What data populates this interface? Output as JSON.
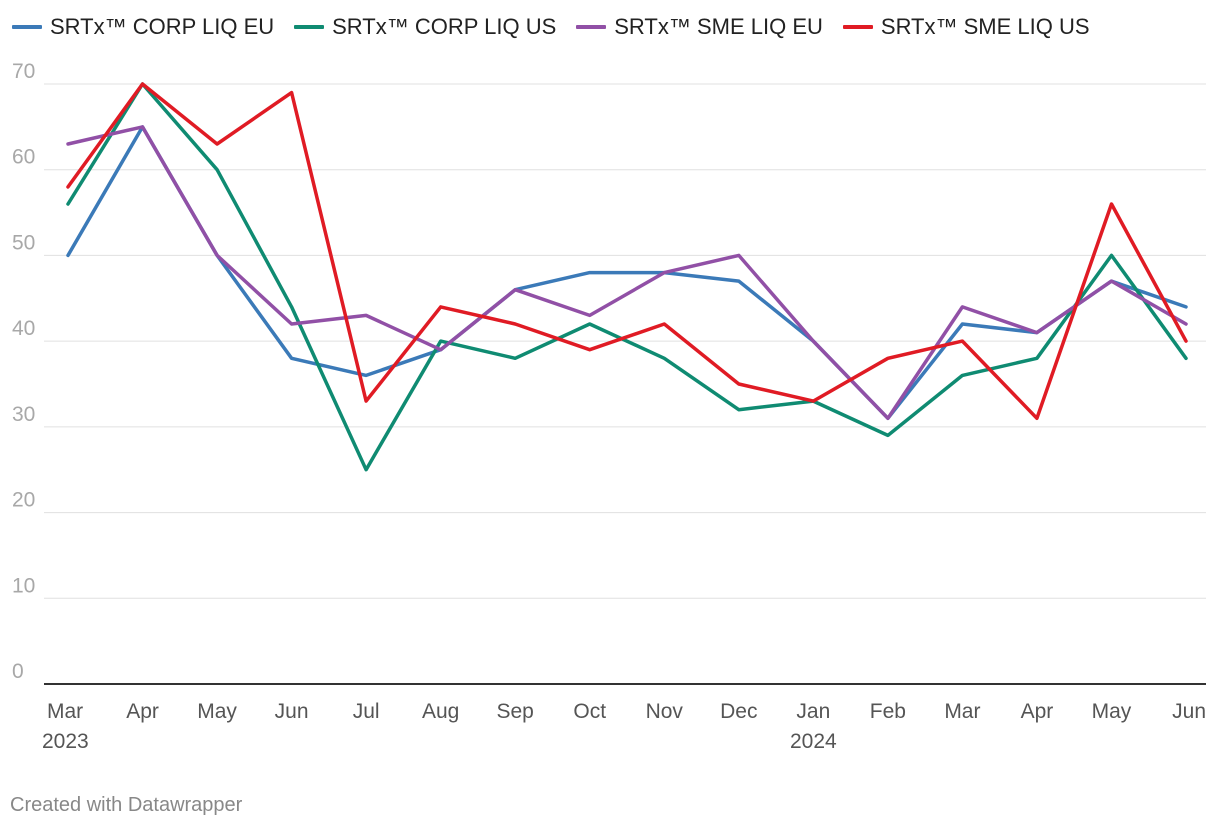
{
  "chart_data": {
    "type": "line",
    "categories": [
      "Mar",
      "Apr",
      "May",
      "Jun",
      "Jul",
      "Aug",
      "Sep",
      "Oct",
      "Nov",
      "Dec",
      "Jan",
      "Feb",
      "Mar",
      "Apr",
      "May",
      "Jun"
    ],
    "year_labels": [
      "2023",
      "",
      "",
      "",
      "",
      "",
      "",
      "",
      "",
      "",
      "2024",
      "",
      "",
      "",
      "",
      ""
    ],
    "ylim": [
      0,
      70
    ],
    "yticks": [
      0,
      10,
      20,
      30,
      40,
      50,
      60,
      70
    ],
    "grid": true,
    "legend_position": "top-left",
    "series": [
      {
        "name": "SRTx™ CORP LIQ EU",
        "color": "#3b7ab8",
        "values": [
          50,
          65,
          50,
          38,
          36,
          39,
          46,
          48,
          48,
          47,
          40,
          31,
          42,
          41,
          47,
          44
        ]
      },
      {
        "name": "SRTx™ CORP LIQ US",
        "color": "#0f8b72",
        "values": [
          56,
          70,
          60,
          44,
          25,
          40,
          38,
          42,
          38,
          32,
          33,
          29,
          36,
          38,
          50,
          38
        ]
      },
      {
        "name": "SRTx™ SME LIQ EU",
        "color": "#9150a6",
        "values": [
          63,
          65,
          50,
          42,
          43,
          39,
          46,
          43,
          48,
          50,
          40,
          31,
          44,
          41,
          47,
          42
        ]
      },
      {
        "name": "SRTx™ SME LIQ US",
        "color": "#e01b24",
        "values": [
          58,
          70,
          63,
          69,
          33,
          44,
          42,
          39,
          42,
          35,
          33,
          38,
          40,
          31,
          56,
          40
        ]
      }
    ]
  },
  "footer": {
    "credit": "Created with Datawrapper"
  }
}
